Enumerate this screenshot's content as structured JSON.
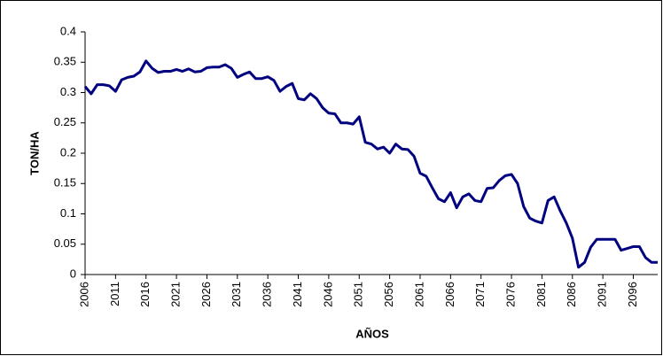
{
  "chart_data": {
    "type": "line",
    "ylabel": "TON/HA",
    "xlabel": "AÑOS",
    "x": [
      2006,
      2007,
      2008,
      2009,
      2010,
      2011,
      2012,
      2013,
      2014,
      2015,
      2016,
      2017,
      2018,
      2019,
      2020,
      2021,
      2022,
      2023,
      2024,
      2025,
      2026,
      2027,
      2028,
      2029,
      2030,
      2031,
      2032,
      2033,
      2034,
      2035,
      2036,
      2037,
      2038,
      2039,
      2040,
      2041,
      2042,
      2043,
      2044,
      2045,
      2046,
      2047,
      2048,
      2049,
      2050,
      2051,
      2052,
      2053,
      2054,
      2055,
      2056,
      2057,
      2058,
      2059,
      2060,
      2061,
      2062,
      2063,
      2064,
      2065,
      2066,
      2067,
      2068,
      2069,
      2070,
      2071,
      2072,
      2073,
      2074,
      2075,
      2076,
      2077,
      2078,
      2079,
      2080,
      2081,
      2082,
      2083,
      2084,
      2085,
      2086,
      2087,
      2088,
      2089,
      2090,
      2091,
      2092,
      2093,
      2094,
      2095,
      2096,
      2097,
      2098,
      2099,
      2100
    ],
    "series": [
      {
        "color": "#000080",
        "values": [
          0.31,
          0.298,
          0.313,
          0.313,
          0.311,
          0.302,
          0.321,
          0.325,
          0.327,
          0.334,
          0.352,
          0.34,
          0.333,
          0.335,
          0.335,
          0.338,
          0.335,
          0.339,
          0.334,
          0.335,
          0.341,
          0.342,
          0.342,
          0.346,
          0.34,
          0.325,
          0.33,
          0.334,
          0.323,
          0.323,
          0.326,
          0.32,
          0.302,
          0.31,
          0.315,
          0.29,
          0.288,
          0.298,
          0.29,
          0.275,
          0.266,
          0.265,
          0.25,
          0.25,
          0.248,
          0.26,
          0.218,
          0.215,
          0.207,
          0.21,
          0.2,
          0.215,
          0.207,
          0.206,
          0.195,
          0.167,
          0.162,
          0.143,
          0.125,
          0.12,
          0.135,
          0.11,
          0.128,
          0.133,
          0.122,
          0.12,
          0.142,
          0.143,
          0.155,
          0.163,
          0.165,
          0.15,
          0.112,
          0.093,
          0.088,
          0.085,
          0.122,
          0.128,
          0.105,
          0.085,
          0.06,
          0.012,
          0.02,
          0.045,
          0.058,
          0.058,
          0.058,
          0.058,
          0.04,
          0.043,
          0.046,
          0.046,
          0.028,
          0.02,
          0.02
        ]
      }
    ],
    "xlim": [
      2006,
      2100
    ],
    "xticks": [
      2006,
      2011,
      2016,
      2021,
      2026,
      2031,
      2036,
      2041,
      2046,
      2051,
      2056,
      2061,
      2066,
      2071,
      2076,
      2081,
      2086,
      2091,
      2096
    ],
    "ylim": [
      0,
      0.4
    ],
    "yticks": [
      0,
      0.05,
      0.1,
      0.15,
      0.2,
      0.25,
      0.3,
      0.35,
      0.4
    ],
    "grid": false
  }
}
